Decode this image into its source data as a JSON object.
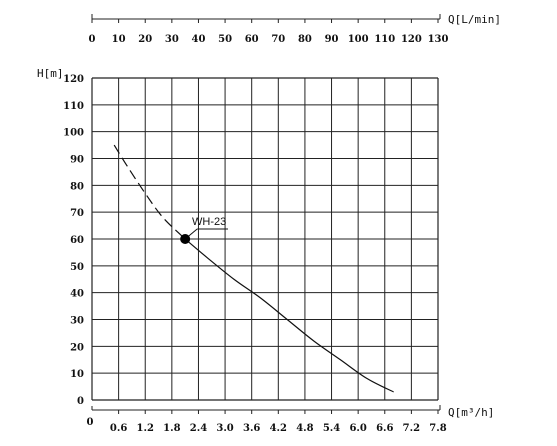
{
  "chart_data": {
    "type": "line",
    "title": "",
    "top_axis": {
      "label": "Q[L/min]",
      "ticks": [
        "0",
        "10",
        "20",
        "30",
        "40",
        "50",
        "60",
        "70",
        "80",
        "90",
        "100",
        "110",
        "120",
        "130"
      ],
      "range": [
        0,
        130
      ]
    },
    "x_axis": {
      "label": "Q[m³/h]",
      "ticks": [
        "0",
        "0.6",
        "1.2",
        "1.8",
        "2.4",
        "3.0",
        "3.6",
        "4.2",
        "4.8",
        "5.4",
        "6.0",
        "6.6",
        "7.2",
        "7.8"
      ],
      "range": [
        0,
        7.8
      ]
    },
    "y_axis": {
      "label": "H[m]",
      "ticks": [
        "0",
        "10",
        "20",
        "30",
        "40",
        "50",
        "60",
        "70",
        "80",
        "90",
        "100",
        "110",
        "120"
      ],
      "range": [
        0,
        120
      ]
    },
    "grid": true,
    "series": [
      {
        "name": "WH-23",
        "dashed_points": [
          [
            0.5,
            95
          ],
          [
            0.8,
            87
          ],
          [
            1.2,
            77
          ],
          [
            1.6,
            68
          ],
          [
            2.1,
            60
          ]
        ],
        "solid_points": [
          [
            2.1,
            60
          ],
          [
            2.6,
            53
          ],
          [
            3.2,
            45
          ],
          [
            3.8,
            38
          ],
          [
            4.4,
            30
          ],
          [
            5.0,
            22
          ],
          [
            5.6,
            15
          ],
          [
            6.2,
            8
          ],
          [
            6.8,
            3
          ]
        ]
      }
    ],
    "marker": {
      "label": "WH-23",
      "x": 2.1,
      "y": 60
    }
  }
}
